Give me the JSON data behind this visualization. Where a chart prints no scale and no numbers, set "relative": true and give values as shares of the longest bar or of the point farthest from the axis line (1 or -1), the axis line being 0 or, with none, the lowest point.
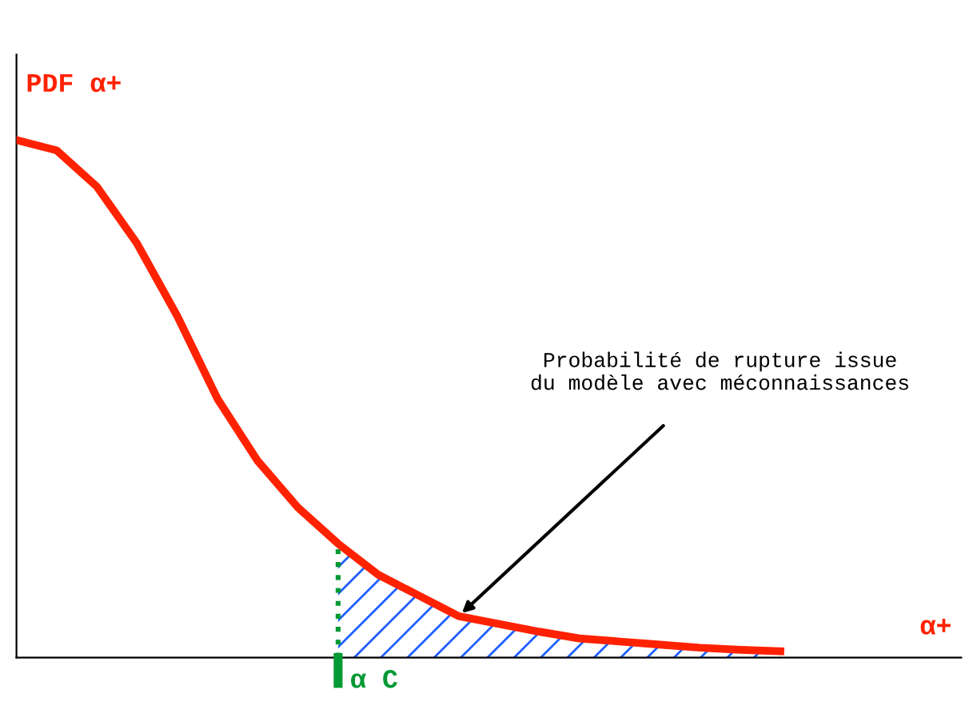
{
  "chart_data": {
    "type": "line",
    "relative": true,
    "ylabel": "PDF α+",
    "xlabel": "α+",
    "categories": [
      null,
      null,
      null,
      null,
      null,
      null,
      null,
      null,
      null,
      null,
      null,
      null,
      null,
      null,
      null,
      null,
      null,
      null,
      null,
      null,
      null,
      null,
      null,
      null
    ],
    "series": [
      {
        "color": "#ff2200",
        "values": [
          1,
          0.98,
          0.91,
          0.8,
          0.66,
          0.5,
          0.38,
          0.29,
          0.22,
          0.16,
          0.12,
          0.08,
          0.065,
          0.05,
          0.037,
          0.031,
          0.025,
          0.019,
          0.015,
          0.012,
          null,
          null,
          null,
          null
        ]
      },
      {
        "type": "area",
        "color": "#1f5fff",
        "values": [
          null,
          null,
          null,
          null,
          null,
          null,
          null,
          null,
          0.22,
          0.16,
          0.12,
          0.08,
          0.065,
          0.05,
          0.037,
          0.031,
          0.025,
          0.019,
          0.015,
          0.012,
          null,
          null,
          null,
          null
        ]
      }
    ],
    "annotations": [
      "α C",
      "Probabilité de rupture issue\ndu modèle avec méconnaissances"
    ],
    "marker": "none",
    "line_style": "solid"
  }
}
